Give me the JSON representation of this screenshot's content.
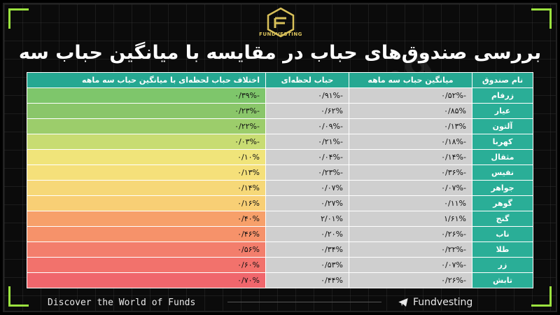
{
  "brand": {
    "logo_text": "FUNDVESTING"
  },
  "title": "بررسی صندوق‌های حباب در مقایسه با میانگین حباب سه ماهه",
  "table": {
    "headers": {
      "name": "نام صندوق",
      "avg": "میانگین حباب سه ماهه",
      "now": "حباب لحظه‌ای",
      "diff": "اختلاف حباب لحظه‌ای با میانگین حباب سه ماهه"
    },
    "rows": [
      {
        "name": "زرفام",
        "avg": "-۰/۵۲%",
        "now": "-۰/۹۱%",
        "diff": "-۰/۳۹%",
        "color": "#7ec66b"
      },
      {
        "name": "عیار",
        "avg": "۰/۸۵%",
        "now": "۰/۶۲%",
        "diff": "-۰/۲۳%",
        "color": "#8ac66a"
      },
      {
        "name": "آلتون",
        "avg": "۰/۱۳%",
        "now": "-۰/۰۹%",
        "diff": "-۰/۲۲%",
        "color": "#9ccd6b"
      },
      {
        "name": "کهربا",
        "avg": "-۰/۱۸%",
        "now": "-۰/۲۱%",
        "diff": "-۰/۰۳%",
        "color": "#c8dc72"
      },
      {
        "name": "مثقال",
        "avg": "-۰/۱۴%",
        "now": "-۰/۰۴%",
        "diff": "۰/۱۰%",
        "color": "#f0e47a"
      },
      {
        "name": "نفیس",
        "avg": "-۰/۳۶%",
        "now": "-۰/۲۳%",
        "diff": "۰/۱۳%",
        "color": "#f5e07a"
      },
      {
        "name": "جواهر",
        "avg": "-۰/۰۷%",
        "now": "۰/۰۷%",
        "diff": "۰/۱۴%",
        "color": "#f6d878"
      },
      {
        "name": "گوهر",
        "avg": "۰/۱۱%",
        "now": "۰/۲۷%",
        "diff": "۰/۱۶%",
        "color": "#f8cf75"
      },
      {
        "name": "گنج",
        "avg": "۱/۶۱%",
        "now": "۲/۰۱%",
        "diff": "۰/۴۰%",
        "color": "#f7a06a"
      },
      {
        "name": "ناب",
        "avg": "-۰/۲۶%",
        "now": "۰/۲۰%",
        "diff": "۰/۴۶%",
        "color": "#f6926a"
      },
      {
        "name": "طلا",
        "avg": "-۰/۲۲%",
        "now": "۰/۳۴%",
        "diff": "۰/۵۶%",
        "color": "#f37e6c"
      },
      {
        "name": "زر",
        "avg": "-۰/۰۷%",
        "now": "۰/۵۳%",
        "diff": "۰/۶۰%",
        "color": "#f2726c"
      },
      {
        "name": "تابش",
        "avg": "-۰/۲۶%",
        "now": "۰/۴۴%",
        "diff": "۰/۷۰%",
        "color": "#f0666c"
      }
    ]
  },
  "watermark": "Fundvesting",
  "footer": {
    "tagline": "Discover the World of Funds",
    "brand": "Fundvesting"
  },
  "colors": {
    "accent": "#9be33f",
    "header_teal": "#26a892",
    "name_teal": "#2aae97",
    "neutral_cell": "#cfcfcf"
  }
}
